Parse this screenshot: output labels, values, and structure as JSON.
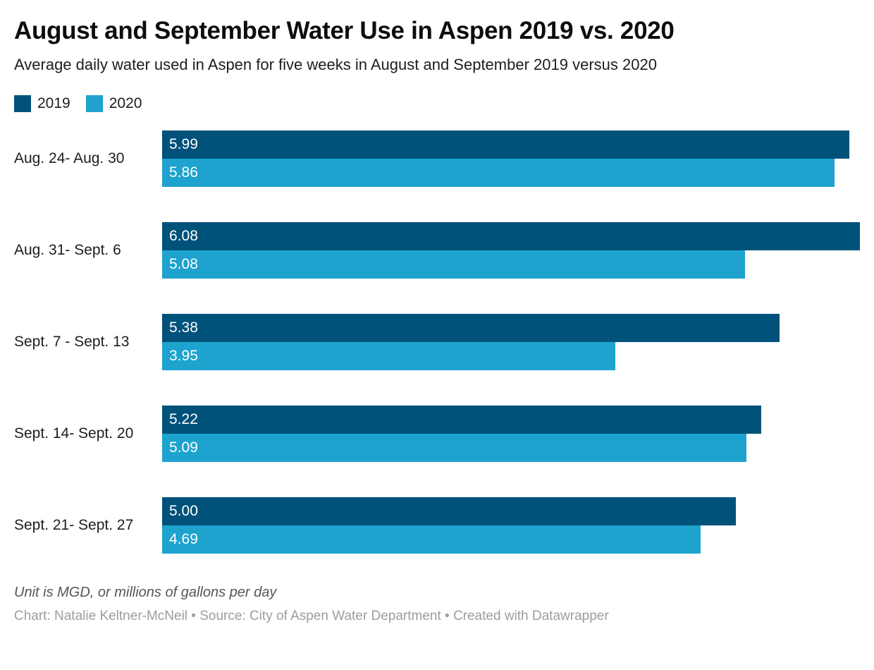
{
  "header": {
    "title": "August and September Water Use in Aspen 2019 vs. 2020",
    "subtitle": "Average daily water used in Aspen for five weeks in August and September 2019 versus 2020"
  },
  "legend": {
    "items": [
      {
        "label": "2019",
        "color": "#00527a"
      },
      {
        "label": "2020",
        "color": "#1ea3cf"
      }
    ]
  },
  "chart_data": {
    "type": "bar",
    "orientation": "horizontal",
    "title": "August and September Water Use in Aspen 2019 vs. 2020",
    "subtitle": "Average daily water used in Aspen for five weeks in August and September 2019 versus 2020",
    "unit": "MGD",
    "categories": [
      "Aug. 24- Aug. 30",
      "Aug. 31- Sept. 6",
      "Sept. 7 - Sept. 13",
      "Sept. 14- Sept. 20",
      "Sept. 21- Sept. 27"
    ],
    "series": [
      {
        "name": "2019",
        "color": "#00527a",
        "values": [
          5.99,
          6.08,
          5.38,
          5.22,
          5.0
        ]
      },
      {
        "name": "2020",
        "color": "#1ea3cf",
        "values": [
          5.86,
          5.08,
          3.95,
          5.09,
          4.69
        ]
      }
    ],
    "xmax": 6.08,
    "value_decimals": 2,
    "bar_labels_inside": true,
    "legend_position": "top-left",
    "grid": false
  },
  "footer": {
    "note": "Unit is MGD, or millions of gallons per day",
    "byline": "Chart: Natalie Keltner-McNeil • Source: City of Aspen Water Department • Created with Datawrapper"
  }
}
